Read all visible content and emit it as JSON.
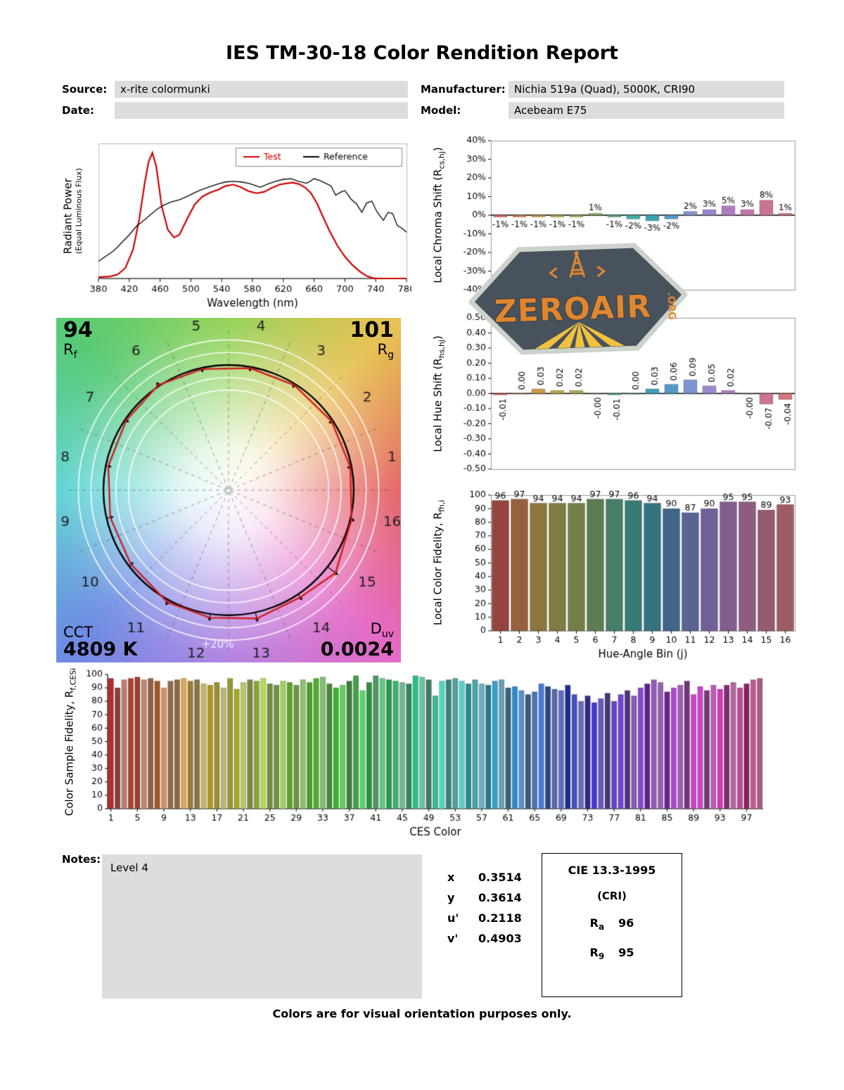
{
  "title": "IES TM-30-18 Color Rendition Report",
  "header": {
    "source_label": "Source:",
    "source_value": "x-rite colormunki",
    "manufacturer_label": "Manufacturer:",
    "manufacturer_value": "Nichia 519a (Quad), 5000K, CRI90",
    "date_label": "Date:",
    "date_value": "",
    "model_label": "Model:",
    "model_value": "Acebeam E75"
  },
  "watermark": {
    "name": "ZEROAIR",
    "tld": ".ORG",
    "colors": {
      "shell": "#47525c",
      "border": "#ccd3cb",
      "orange": "#e0862f",
      "yellow": "#f2c23e"
    }
  },
  "hue_bin_colors": {
    "pastel": [
      "#e0685e",
      "#db8352",
      "#cf9c49",
      "#bfa94e",
      "#a4af56",
      "#83b169",
      "#5cb189",
      "#41ada2",
      "#3ea3b4",
      "#539bc7",
      "#7e93d2",
      "#9b87cf",
      "#b07cc1",
      "#c178ad",
      "#ca7593",
      "#d4787f"
    ],
    "dark": [
      "#95443f",
      "#96613c",
      "#8c763b",
      "#7f7c40",
      "#747f46",
      "#5c7d50",
      "#467e68",
      "#377b76",
      "#34727e",
      "#3f6589",
      "#596492",
      "#716097",
      "#815e8d",
      "#8d5c80",
      "#955a6e",
      "#9c5c62"
    ]
  },
  "chart_data": [
    {
      "id": "spectral_power_distribution",
      "type": "line",
      "xlabel": "Wavelength (nm)",
      "ylabel": "Radiant Power",
      "ylabel2": "(Equal Luminous Flux)",
      "xlim": [
        380,
        780
      ],
      "xticks": [
        380,
        420,
        460,
        500,
        540,
        580,
        620,
        660,
        700,
        740,
        780
      ],
      "ylim": [
        0,
        1
      ],
      "grid": false,
      "legend_position": "top-right",
      "legend": [
        {
          "label": "Test",
          "color": "#cc0000"
        },
        {
          "label": "Reference",
          "color": "#000000"
        }
      ],
      "series": [
        {
          "name": "Test",
          "color": "#cc0000",
          "points": [
            [
              380,
              0.01
            ],
            [
              395,
              0.015
            ],
            [
              405,
              0.03
            ],
            [
              415,
              0.08
            ],
            [
              425,
              0.22
            ],
            [
              433,
              0.45
            ],
            [
              440,
              0.72
            ],
            [
              445,
              0.88
            ],
            [
              450,
              0.95
            ],
            [
              455,
              0.85
            ],
            [
              462,
              0.55
            ],
            [
              470,
              0.37
            ],
            [
              478,
              0.31
            ],
            [
              485,
              0.33
            ],
            [
              495,
              0.45
            ],
            [
              505,
              0.56
            ],
            [
              515,
              0.62
            ],
            [
              525,
              0.65
            ],
            [
              535,
              0.67
            ],
            [
              545,
              0.7
            ],
            [
              555,
              0.71
            ],
            [
              565,
              0.69
            ],
            [
              575,
              0.66
            ],
            [
              585,
              0.645
            ],
            [
              595,
              0.655
            ],
            [
              605,
              0.685
            ],
            [
              615,
              0.71
            ],
            [
              625,
              0.72
            ],
            [
              632,
              0.725
            ],
            [
              640,
              0.715
            ],
            [
              648,
              0.69
            ],
            [
              656,
              0.645
            ],
            [
              664,
              0.565
            ],
            [
              672,
              0.46
            ],
            [
              680,
              0.36
            ],
            [
              690,
              0.25
            ],
            [
              700,
              0.165
            ],
            [
              710,
              0.1
            ],
            [
              720,
              0.05
            ],
            [
              728,
              0.02
            ],
            [
              735,
              0.005
            ],
            [
              740,
              0.0
            ],
            [
              780,
              0.0
            ]
          ]
        },
        {
          "name": "Reference",
          "color": "#000000",
          "points": [
            [
              380,
              0.13
            ],
            [
              390,
              0.17
            ],
            [
              400,
              0.21
            ],
            [
              410,
              0.27
            ],
            [
              420,
              0.33
            ],
            [
              430,
              0.4
            ],
            [
              435,
              0.42
            ],
            [
              445,
              0.47
            ],
            [
              455,
              0.52
            ],
            [
              465,
              0.555
            ],
            [
              475,
              0.58
            ],
            [
              485,
              0.595
            ],
            [
              495,
              0.62
            ],
            [
              505,
              0.65
            ],
            [
              515,
              0.675
            ],
            [
              525,
              0.695
            ],
            [
              535,
              0.715
            ],
            [
              545,
              0.73
            ],
            [
              555,
              0.735
            ],
            [
              565,
              0.73
            ],
            [
              575,
              0.72
            ],
            [
              585,
              0.7
            ],
            [
              590,
              0.69
            ],
            [
              600,
              0.715
            ],
            [
              610,
              0.735
            ],
            [
              620,
              0.75
            ],
            [
              630,
              0.755
            ],
            [
              640,
              0.735
            ],
            [
              650,
              0.72
            ],
            [
              655,
              0.735
            ],
            [
              660,
              0.755
            ],
            [
              668,
              0.74
            ],
            [
              675,
              0.72
            ],
            [
              682,
              0.7
            ],
            [
              688,
              0.63
            ],
            [
              695,
              0.655
            ],
            [
              700,
              0.665
            ],
            [
              708,
              0.6
            ],
            [
              715,
              0.565
            ],
            [
              722,
              0.5
            ],
            [
              728,
              0.57
            ],
            [
              735,
              0.585
            ],
            [
              742,
              0.5
            ],
            [
              750,
              0.44
            ],
            [
              756,
              0.5
            ],
            [
              762,
              0.49
            ],
            [
              768,
              0.4
            ],
            [
              774,
              0.38
            ],
            [
              780,
              0.35
            ]
          ]
        }
      ]
    },
    {
      "id": "local_chroma_shift",
      "type": "bar",
      "ylabel_pre": "Local Chroma Shift (R",
      "ylabel_sub": "cs,hj",
      "ylabel_post": ")",
      "ylim": [
        -40,
        40
      ],
      "ytick_step": 10,
      "unit": "%",
      "categories": [
        1,
        2,
        3,
        4,
        5,
        6,
        7,
        8,
        9,
        10,
        11,
        12,
        13,
        14,
        15,
        16
      ],
      "values": [
        -1,
        -1,
        -1,
        -1,
        -1,
        1,
        -1,
        -2,
        -3,
        -2,
        2,
        3,
        5,
        3,
        8,
        1
      ],
      "value_labels": [
        "-1%",
        "-1%",
        "-1%",
        "-1%",
        "-1%",
        "1%",
        "-1%",
        "-2%",
        "-3%",
        "-2%",
        "2%",
        "3%",
        "5%",
        "3%",
        "8%",
        "1%"
      ]
    },
    {
      "id": "local_hue_shift",
      "type": "bar",
      "ylabel_pre": "Local Hue Shift (R",
      "ylabel_sub": "hs,hj",
      "ylabel_post": ")",
      "ylim": [
        -0.5,
        0.5
      ],
      "ytick_step": 0.1,
      "categories": [
        1,
        2,
        3,
        4,
        5,
        6,
        7,
        8,
        9,
        10,
        11,
        12,
        13,
        14,
        15,
        16
      ],
      "values": [
        -0.01,
        0.0,
        0.03,
        0.02,
        0.02,
        -0.0,
        -0.01,
        0.0,
        0.03,
        0.06,
        0.09,
        0.05,
        0.02,
        -0.0,
        -0.07,
        -0.04
      ],
      "value_labels": [
        "-0.01",
        "0.00",
        "0.03",
        "0.02",
        "0.02",
        "-0.00",
        "-0.01",
        "0.00",
        "0.03",
        "0.06",
        "0.09",
        "0.05",
        "0.02",
        "-0.00",
        "-0.07",
        "-0.04"
      ]
    },
    {
      "id": "local_color_fidelity",
      "type": "bar",
      "ylabel_pre": "Local Color Fidelity, R",
      "ylabel_sub": "fh,i",
      "ylabel_post": "",
      "xlabel": "Hue-Angle Bin (j)",
      "ylim": [
        0,
        100
      ],
      "ytick_step": 10,
      "categories": [
        1,
        2,
        3,
        4,
        5,
        6,
        7,
        8,
        9,
        10,
        11,
        12,
        13,
        14,
        15,
        16
      ],
      "values": [
        96,
        97,
        94,
        94,
        94,
        97,
        97,
        96,
        94,
        90,
        87,
        90,
        95,
        95,
        89,
        93
      ]
    },
    {
      "id": "color_sample_fidelity",
      "type": "bar",
      "ylabel_pre": "Color Sample Fidelity, R",
      "ylabel_sub": "f,CESi",
      "ylabel_post": "",
      "xlabel": "CES Color",
      "ylim": [
        0,
        100
      ],
      "ytick_step": 10,
      "xticks": [
        1,
        5,
        9,
        13,
        17,
        21,
        25,
        29,
        33,
        37,
        41,
        45,
        49,
        53,
        57,
        61,
        65,
        69,
        73,
        77,
        81,
        85,
        89,
        93,
        97
      ],
      "values": [
        97,
        90,
        96,
        97,
        98,
        96,
        97,
        95,
        90,
        95,
        96,
        97,
        95,
        96,
        93,
        92,
        94,
        90,
        97,
        89,
        94,
        96,
        95,
        97,
        93,
        92,
        95,
        94,
        92,
        96,
        94,
        97,
        98,
        93,
        90,
        92,
        95,
        99,
        88,
        94,
        99,
        97,
        96,
        95,
        94,
        93,
        99,
        98,
        96,
        84,
        95,
        96,
        97,
        95,
        93,
        96,
        93,
        92,
        95,
        96,
        90,
        91,
        88,
        85,
        87,
        93,
        91,
        89,
        88,
        92,
        85,
        80,
        84,
        79,
        82,
        86,
        80,
        85,
        88,
        84,
        90,
        93,
        96,
        94,
        87,
        90,
        92,
        95,
        85,
        91,
        88,
        92,
        89,
        92,
        94,
        90,
        93,
        96,
        97
      ]
    },
    {
      "id": "color_vector_graphic",
      "type": "cvg",
      "rf_pre": "R",
      "rf_sub": "f",
      "rf": "94",
      "rg_pre": "R",
      "rg_sub": "g",
      "rg": "101",
      "cct_label": "CCT",
      "cct_value": "4809 K",
      "duv_pre": "D",
      "duv_sub": "uv",
      "duv_value": "0.0024",
      "ring_label": "+20%",
      "bins": [
        1,
        2,
        3,
        4,
        5,
        6,
        7,
        8,
        9,
        10,
        11,
        12,
        13,
        14,
        15,
        16
      ],
      "chroma_shift_pct": [
        -1,
        -1,
        -1,
        -1,
        -1,
        1,
        -1,
        -2,
        -3,
        -2,
        2,
        3,
        5,
        3,
        8,
        1
      ],
      "hue_shift_rad": [
        -0.01,
        0.0,
        0.03,
        0.02,
        0.02,
        0.0,
        -0.01,
        0.0,
        0.03,
        0.06,
        0.09,
        0.05,
        0.02,
        0.0,
        -0.07,
        -0.04
      ]
    }
  ],
  "notes": {
    "label": "Notes:",
    "value": "Level 4"
  },
  "chromaticity": {
    "rows": [
      {
        "label": "x",
        "value": "0.3514"
      },
      {
        "label": "y",
        "value": "0.3614"
      },
      {
        "label": "u'",
        "value": "0.2118"
      },
      {
        "label": "v'",
        "value": "0.4903"
      }
    ]
  },
  "cri_box": {
    "title": "CIE 13.3-1995",
    "subtitle": "(CRI)",
    "rows": [
      {
        "pre": "R",
        "sub": "a",
        "value": "96"
      },
      {
        "pre": "R",
        "sub": "9",
        "value": "95"
      }
    ]
  },
  "footer": "Colors are for visual orientation purposes only."
}
